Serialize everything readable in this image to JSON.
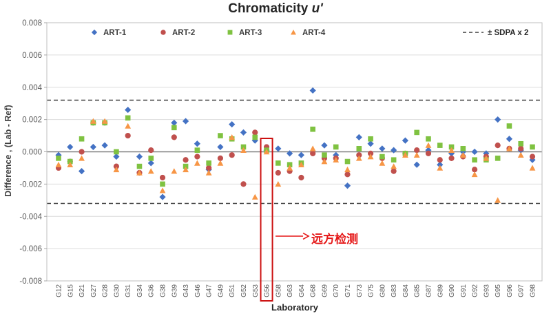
{
  "chart_data": {
    "type": "scatter",
    "title_main": "Chromaticity ",
    "title_var": "u'",
    "xlabel": "Laboratory",
    "ylabel": "Difference , (Lab - Ref)",
    "ylim": [
      -0.008,
      0.008
    ],
    "ytick_labels": [
      "0.008",
      "0.006",
      "0.004",
      "0.002",
      "0.000",
      "-0.002",
      "-0.004",
      "-0.006",
      "-0.008"
    ],
    "grid": true,
    "legend_position": "top-inside",
    "categories": [
      "G12",
      "G15",
      "G21",
      "G27",
      "G28",
      "G30",
      "G31",
      "G34",
      "G36",
      "G38",
      "G39",
      "G43",
      "G46",
      "G47",
      "G49",
      "G51",
      "G52",
      "G53",
      "G56",
      "G58",
      "G63",
      "G64",
      "G68",
      "G69",
      "G70",
      "G71",
      "G73",
      "G75",
      "G80",
      "G83",
      "G84",
      "G85",
      "G87",
      "G89",
      "G90",
      "G91",
      "G92",
      "G93",
      "G95",
      "G96",
      "G97",
      "G98"
    ],
    "series": [
      {
        "name": "ART-1",
        "marker": "diamond",
        "color": "#4472C4",
        "values": [
          -0.0002,
          0.0003,
          -0.0012,
          0.0003,
          0.0004,
          -0.0003,
          0.0026,
          -0.0003,
          -0.0007,
          -0.0028,
          0.0018,
          0.0019,
          0.0005,
          -0.0011,
          0.0003,
          0.0017,
          0.0012,
          0.0007,
          0.0001,
          0.0002,
          -0.0001,
          -0.0002,
          0.0038,
          0.0004,
          -0.0002,
          -0.0021,
          0.0009,
          0.0005,
          0.0002,
          0.0001,
          0.0007,
          -0.0008,
          0.0001,
          -0.0008,
          -0.0001,
          0.0,
          0.0,
          -0.0001,
          0.002,
          0.0008,
          0.0001,
          -0.0005
        ]
      },
      {
        "name": "ART-2",
        "marker": "circle",
        "color": "#C0504D",
        "values": [
          -0.001,
          -0.0006,
          0.0,
          0.0018,
          0.0018,
          -0.0009,
          0.001,
          -0.0013,
          0.0001,
          -0.0016,
          0.0009,
          -0.0005,
          -0.0003,
          -0.001,
          -0.0004,
          -0.0002,
          -0.002,
          0.0012,
          0.0003,
          -0.0013,
          -0.0012,
          -0.0016,
          -0.0001,
          -0.0004,
          -0.0004,
          -0.0014,
          -0.0002,
          -0.0001,
          -0.0004,
          -0.0012,
          -0.0001,
          0.0001,
          -0.0001,
          -0.0005,
          -0.0004,
          -0.0003,
          -0.0011,
          -0.0003,
          0.0004,
          0.0002,
          0.0002,
          -0.0003
        ]
      },
      {
        "name": "ART-3",
        "marker": "square",
        "color": "#7FC241",
        "values": [
          -0.0004,
          -0.0006,
          0.0008,
          0.0018,
          0.0018,
          0.0,
          0.0021,
          -0.0009,
          -0.0004,
          -0.002,
          0.0015,
          -0.0009,
          0.0001,
          -0.0007,
          0.001,
          0.0008,
          0.0003,
          0.0009,
          0.0001,
          -0.0007,
          -0.0008,
          -0.0007,
          0.0014,
          -0.0002,
          0.0003,
          -0.0006,
          0.0002,
          0.0008,
          -0.0003,
          -0.0005,
          -0.0001,
          0.0012,
          0.0008,
          0.0004,
          0.0003,
          0.0002,
          -0.0005,
          -0.0005,
          -0.0004,
          0.0016,
          0.0005,
          0.0003
        ]
      },
      {
        "name": "ART-4",
        "marker": "triangle",
        "color": "#F79646",
        "values": [
          -0.0008,
          -0.0008,
          -0.0004,
          0.0019,
          0.0019,
          -0.0011,
          0.0016,
          -0.0013,
          -0.0012,
          -0.0024,
          -0.0012,
          -0.0011,
          -0.0007,
          -0.0013,
          -0.0007,
          0.0009,
          0.0001,
          -0.0028,
          0.0,
          -0.002,
          -0.001,
          -0.0008,
          0.0002,
          -0.0006,
          -0.0005,
          -0.0011,
          -0.0004,
          -0.0003,
          -0.0007,
          -0.0009,
          -0.0002,
          -0.0002,
          0.0004,
          -0.001,
          0.0001,
          -0.0002,
          -0.0014,
          -0.0004,
          -0.003,
          0.0002,
          -0.0002,
          -0.001
        ]
      }
    ],
    "ref_lines": {
      "label": "± SDPA x 2",
      "value": 0.0032,
      "style": "dashed",
      "color": "#3F3F3F"
    },
    "zero_line": true,
    "annotation": {
      "text": "远方检测",
      "color": "#E51717",
      "highlight_category": "G56"
    }
  }
}
